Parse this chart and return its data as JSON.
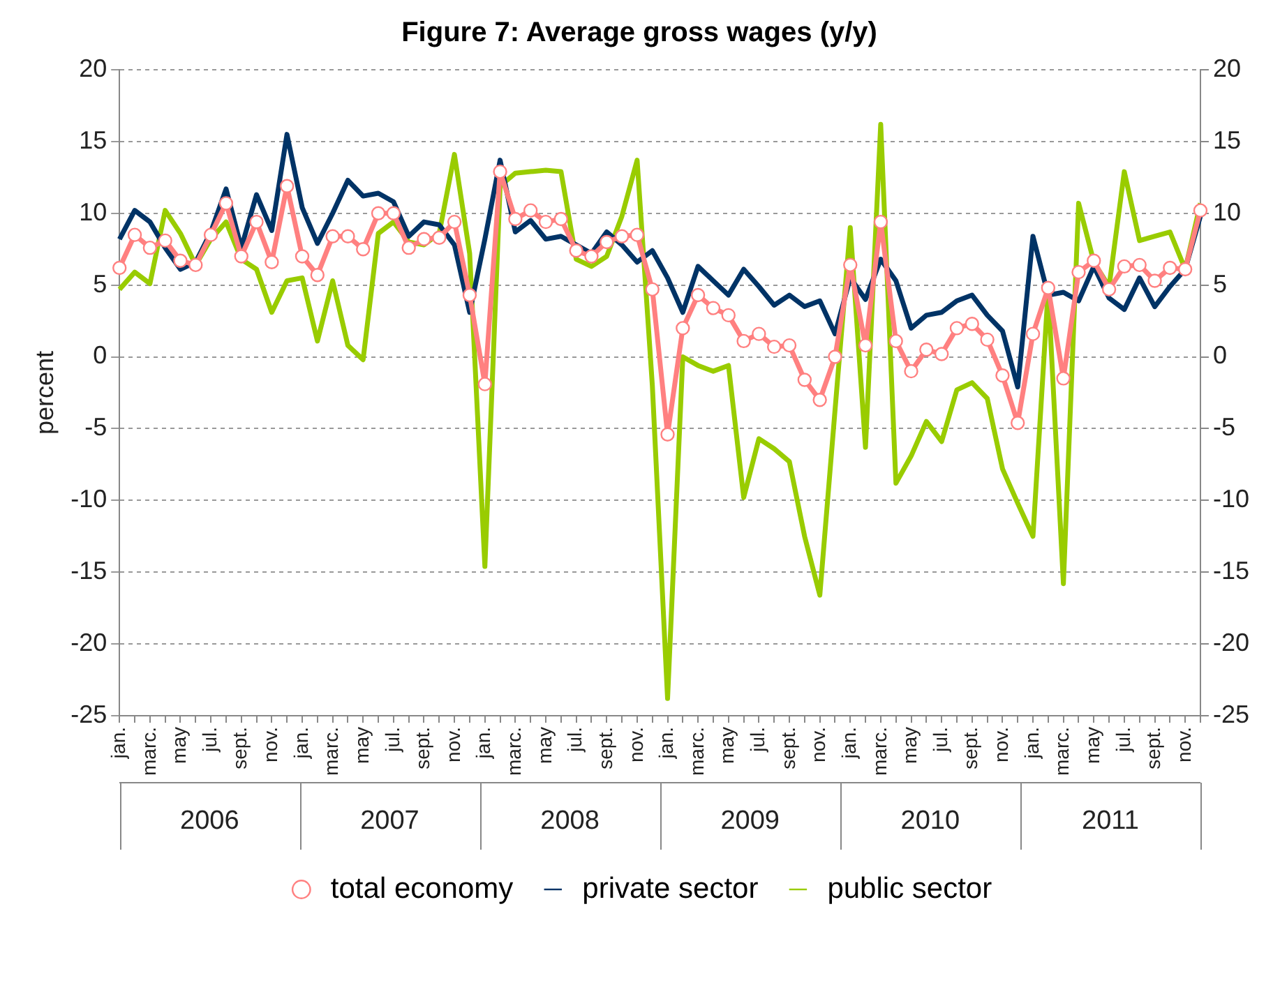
{
  "chart_data": {
    "type": "line",
    "title": "Figure 7: Average gross wages (y/y)",
    "ylabel": "percent",
    "categories": [
      "jan.",
      null,
      "marc.",
      null,
      "may",
      null,
      "jul.",
      null,
      "sept.",
      null,
      "nov.",
      null,
      "jan.",
      null,
      "marc.",
      null,
      "may",
      null,
      "jul.",
      null,
      "sept.",
      null,
      "nov.",
      null,
      "jan.",
      null,
      "marc.",
      null,
      "may",
      null,
      "jul.",
      null,
      "sept.",
      null,
      "nov.",
      null,
      "jan.",
      null,
      "marc.",
      null,
      "may",
      null,
      "jul.",
      null,
      "sept.",
      null,
      "nov.",
      null,
      "jan.",
      null,
      "marc.",
      null,
      "may",
      null,
      "jul.",
      null,
      "sept.",
      null,
      "nov.",
      null,
      "jan.",
      null,
      "marc.",
      null,
      "may",
      null,
      "jul.",
      null,
      "sept.",
      null,
      "nov.",
      null
    ],
    "annotations": [
      "2006",
      "2007",
      "2008",
      "2009",
      "2010",
      "2011"
    ],
    "series": [
      {
        "name": "total economy",
        "color": "#ff8080",
        "marker": "circle",
        "values": [
          6.2,
          8.5,
          7.6,
          8.1,
          6.7,
          6.4,
          8.5,
          10.7,
          7.0,
          9.4,
          6.6,
          11.9,
          7.0,
          5.7,
          8.4,
          8.4,
          7.5,
          10.0,
          10.0,
          7.6,
          8.2,
          8.3,
          9.4,
          4.3,
          -1.9,
          12.9,
          9.6,
          10.2,
          9.4,
          9.6,
          7.4,
          7.0,
          8.0,
          8.4,
          8.5,
          4.7,
          -5.4,
          2.0,
          4.3,
          3.4,
          2.9,
          1.1,
          1.6,
          0.7,
          0.8,
          -1.6,
          -3.0,
          0.0,
          6.4,
          0.8,
          9.4,
          1.1,
          -1.0,
          0.5,
          0.2,
          2.0,
          2.3,
          1.2,
          -1.3,
          -4.6,
          1.6,
          4.8,
          -1.5,
          5.9,
          6.7,
          4.7,
          6.3,
          6.4,
          5.3,
          6.2,
          6.1,
          10.2
        ]
      },
      {
        "name": "private sector",
        "color": "#003366",
        "values": [
          8.2,
          10.2,
          9.4,
          7.6,
          6.1,
          6.6,
          8.7,
          11.7,
          7.6,
          11.3,
          8.8,
          15.5,
          10.4,
          7.9,
          10.0,
          12.3,
          11.2,
          11.4,
          10.8,
          8.4,
          9.4,
          9.2,
          7.8,
          3.1,
          8.2,
          13.7,
          8.7,
          9.5,
          8.2,
          8.4,
          7.8,
          7.2,
          8.7,
          7.8,
          6.6,
          7.4,
          5.5,
          3.1,
          6.3,
          5.3,
          4.3,
          6.1,
          4.9,
          3.6,
          4.3,
          3.5,
          3.9,
          1.6,
          5.5,
          4.0,
          6.8,
          5.3,
          2.0,
          2.9,
          3.1,
          3.9,
          4.3,
          2.9,
          1.8,
          -2.1,
          8.4,
          4.3,
          4.5,
          3.9,
          6.3,
          4.1,
          3.3,
          5.5,
          3.5,
          4.9,
          6.1,
          9.8
        ]
      },
      {
        "name": "public sector",
        "color": "#99cc00",
        "values": [
          4.7,
          5.9,
          5.1,
          10.2,
          8.6,
          6.4,
          8.2,
          9.4,
          6.8,
          6.1,
          3.1,
          5.3,
          5.5,
          1.1,
          5.3,
          0.8,
          -0.2,
          8.6,
          9.4,
          8.0,
          7.8,
          8.6,
          14.1,
          7.2,
          -14.6,
          11.9,
          12.8,
          12.9,
          13.0,
          12.9,
          6.8,
          6.3,
          7.0,
          9.8,
          13.7,
          -2.0,
          -23.8,
          0.0,
          -0.6,
          -1.0,
          -0.6,
          -9.8,
          -5.7,
          -6.4,
          -7.3,
          -12.5,
          -16.6,
          -3.7,
          9.0,
          -6.3,
          16.2,
          -8.8,
          -6.9,
          -4.5,
          -5.9,
          -2.3,
          -1.8,
          -2.9,
          -7.8,
          -10.2,
          -12.5,
          4.7,
          -15.8,
          10.7,
          6.6,
          4.9,
          12.9,
          8.1,
          8.4,
          8.7,
          6.1,
          10.7
        ]
      }
    ],
    "ylim": [
      -25,
      20
    ],
    "yticks": [
      -25,
      -20,
      -15,
      -10,
      -5,
      0,
      5,
      10,
      15,
      20
    ],
    "y2lim": [
      -25,
      20
    ],
    "y2ticks": [
      -25,
      -20,
      -15,
      -10,
      -5,
      0,
      5,
      10,
      15,
      20
    ],
    "grid": "y",
    "legend": "bottom"
  }
}
